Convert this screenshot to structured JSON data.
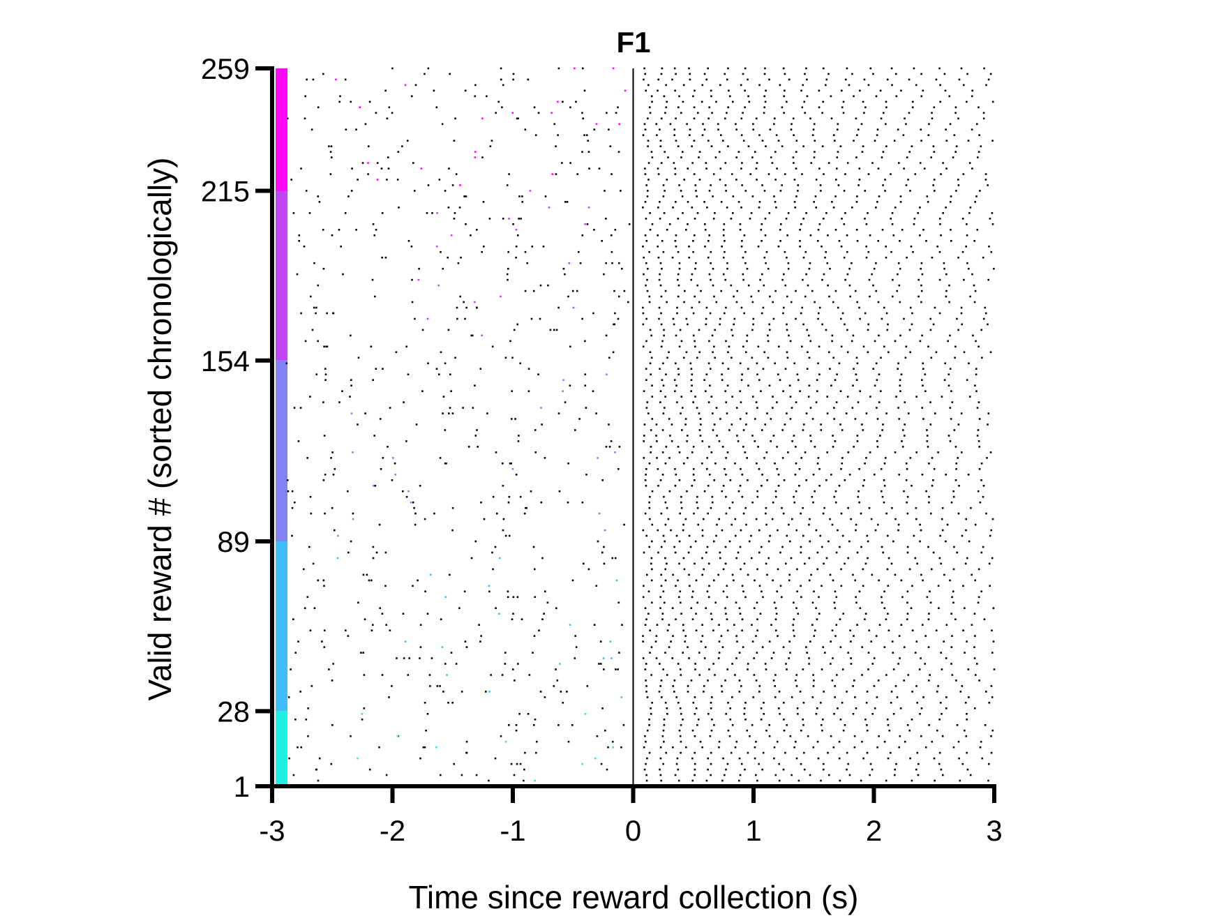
{
  "chart_data": {
    "type": "scatter",
    "title": "F1",
    "xlabel": "Time since reward collection (s)",
    "ylabel": "Valid reward # (sorted chronologically)",
    "xlim": [
      -3,
      3
    ],
    "ylim": [
      1,
      259
    ],
    "x_ticks": [
      -3,
      -2,
      -1,
      0,
      1,
      2,
      3
    ],
    "x_tick_labels": [
      "-3",
      "-2",
      "-1",
      "0",
      "1",
      "2",
      "3"
    ],
    "y_ticks": [
      1,
      28,
      89,
      154,
      215,
      259
    ],
    "y_tick_labels": [
      "1",
      "28",
      "89",
      "154",
      "215",
      "259"
    ],
    "reference_line_x": 0,
    "grid": false,
    "legend": "none",
    "trial_blocks": [
      {
        "from": 1,
        "to": 28,
        "color": "#1ff0e6"
      },
      {
        "from": 28,
        "to": 89,
        "color": "#3fbdf9"
      },
      {
        "from": 89,
        "to": 154,
        "color": "#8282f7"
      },
      {
        "from": 154,
        "to": 215,
        "color": "#bf45f6"
      },
      {
        "from": 215,
        "to": 259,
        "color": "#ff08fb"
      }
    ],
    "spike_color": "#000000",
    "pre_reward_lick_colors_match_block": true
  }
}
